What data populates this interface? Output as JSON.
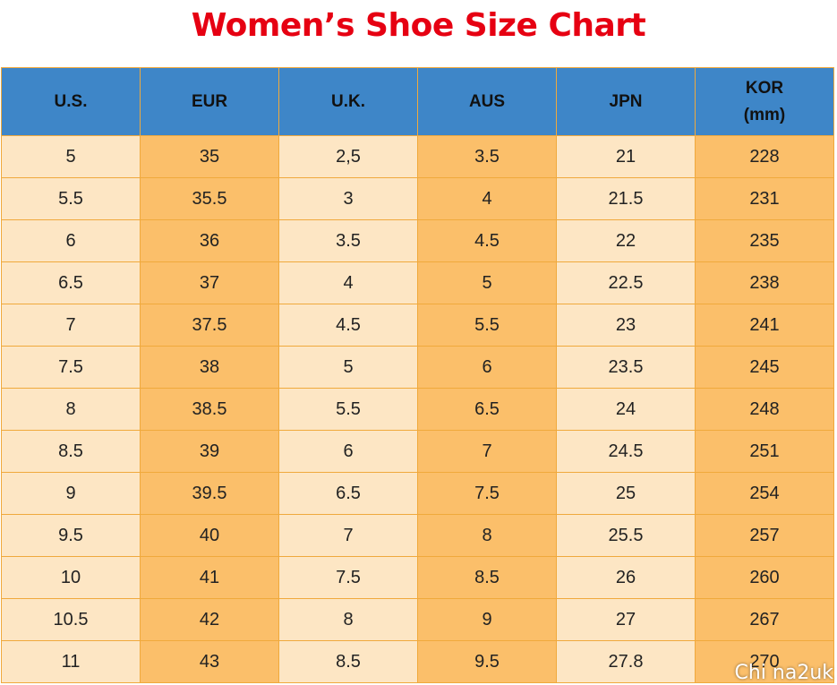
{
  "title": "Women’s Shoe Size Chart",
  "headers": [
    {
      "line1": "U.S.",
      "line2": ""
    },
    {
      "line1": "EUR",
      "line2": ""
    },
    {
      "line1": "U.K.",
      "line2": ""
    },
    {
      "line1": "AUS",
      "line2": ""
    },
    {
      "line1": "JPN",
      "line2": ""
    },
    {
      "line1": "KOR",
      "line2": "(mm)"
    }
  ],
  "rows": [
    [
      "5",
      "35",
      "2,5",
      "3.5",
      "21",
      "228"
    ],
    [
      "5.5",
      "35.5",
      "3",
      "4",
      "21.5",
      "231"
    ],
    [
      "6",
      "36",
      "3.5",
      "4.5",
      "22",
      "235"
    ],
    [
      "6.5",
      "37",
      "4",
      "5",
      "22.5",
      "238"
    ],
    [
      "7",
      "37.5",
      "4.5",
      "5.5",
      "23",
      "241"
    ],
    [
      "7.5",
      "38",
      "5",
      "6",
      "23.5",
      "245"
    ],
    [
      "8",
      "38.5",
      "5.5",
      "6.5",
      "24",
      "248"
    ],
    [
      "8.5",
      "39",
      "6",
      "7",
      "24.5",
      "251"
    ],
    [
      "9",
      "39.5",
      "6.5",
      "7.5",
      "25",
      "254"
    ],
    [
      "9.5",
      "40",
      "7",
      "8",
      "25.5",
      "257"
    ],
    [
      "10",
      "41",
      "7.5",
      "8.5",
      "26",
      "260"
    ],
    [
      "10.5",
      "42",
      "8",
      "9",
      "27",
      "267"
    ],
    [
      "11",
      "43",
      "8.5",
      "9.5",
      "27.8",
      "270"
    ]
  ],
  "watermark": "Chi na2uk",
  "colors": {
    "title": "#e60012",
    "header_bg": "#3e86c8",
    "cell_light": "#fde6c4",
    "cell_dark": "#fbbf6a",
    "border": "#f0a93c"
  }
}
